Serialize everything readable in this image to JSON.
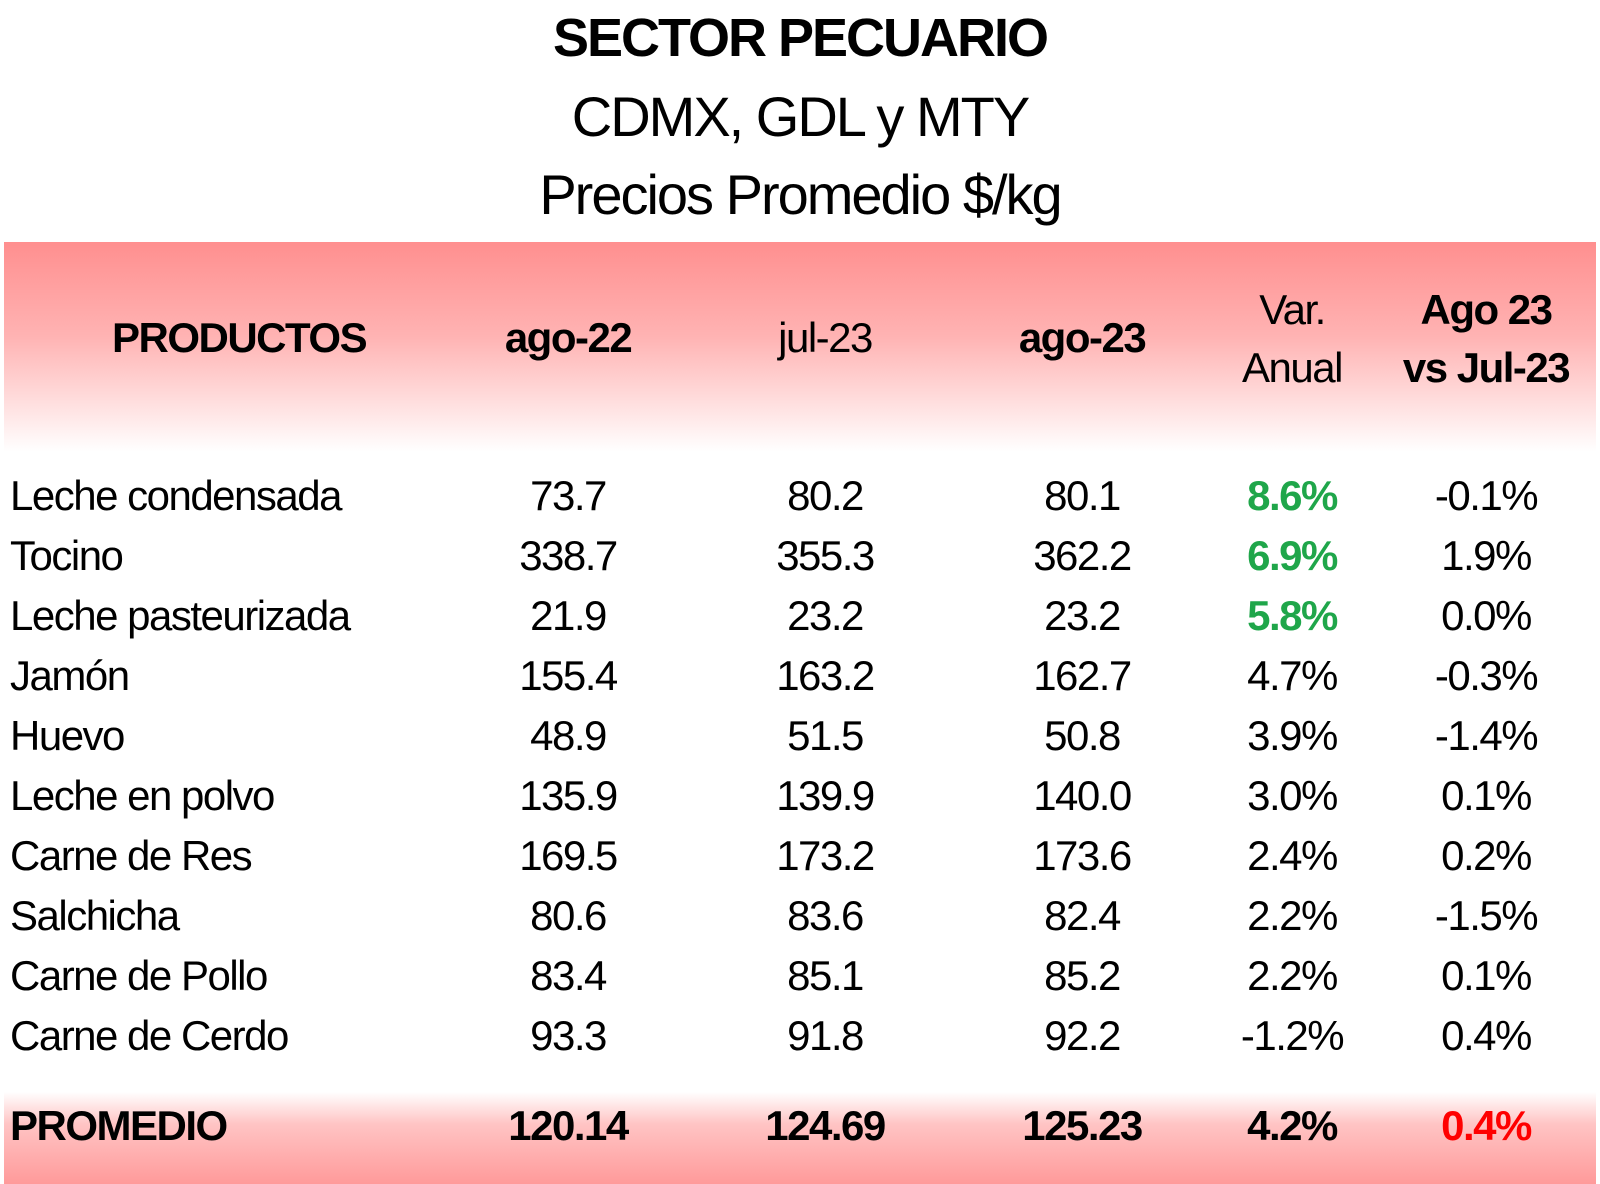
{
  "title": "SECTOR PECUARIO",
  "subtitle1": "CDMX, GDL y MTY",
  "subtitle2": "Precios Promedio $/kg",
  "header": {
    "productos": "PRODUCTOS",
    "ago22": "ago-22",
    "jul23": "jul-23",
    "ago23": "ago-23",
    "var_line1": "Var.",
    "var_line2": "Anual",
    "cmp_line1": "Ago 23",
    "cmp_line2": "vs Jul-23"
  },
  "rows": [
    {
      "producto": "Leche condensada",
      "ago22": "73.7",
      "jul23": "80.2",
      "ago23": "80.1",
      "var": "8.6%",
      "cmp": "-0.1%",
      "highlight": true
    },
    {
      "producto": "Tocino",
      "ago22": "338.7",
      "jul23": "355.3",
      "ago23": "362.2",
      "var": "6.9%",
      "cmp": "1.9%",
      "highlight": true
    },
    {
      "producto": "Leche pasteurizada",
      "ago22": "21.9",
      "jul23": "23.2",
      "ago23": "23.2",
      "var": "5.8%",
      "cmp": "0.0%",
      "highlight": true
    },
    {
      "producto": "Jamón",
      "ago22": "155.4",
      "jul23": "163.2",
      "ago23": "162.7",
      "var": "4.7%",
      "cmp": "-0.3%",
      "highlight": false
    },
    {
      "producto": "Huevo",
      "ago22": "48.9",
      "jul23": "51.5",
      "ago23": "50.8",
      "var": "3.9%",
      "cmp": "-1.4%",
      "highlight": false
    },
    {
      "producto": "Leche en polvo",
      "ago22": "135.9",
      "jul23": "139.9",
      "ago23": "140.0",
      "var": "3.0%",
      "cmp": "0.1%",
      "highlight": false
    },
    {
      "producto": "Carne de Res",
      "ago22": "169.5",
      "jul23": "173.2",
      "ago23": "173.6",
      "var": "2.4%",
      "cmp": "0.2%",
      "highlight": false
    },
    {
      "producto": "Salchicha",
      "ago22": "80.6",
      "jul23": "83.6",
      "ago23": "82.4",
      "var": "2.2%",
      "cmp": "-1.5%",
      "highlight": false
    },
    {
      "producto": "Carne de Pollo",
      "ago22": "83.4",
      "jul23": "85.1",
      "ago23": "85.2",
      "var": "2.2%",
      "cmp": "0.1%",
      "highlight": false
    },
    {
      "producto": "Carne de Cerdo",
      "ago22": "93.3",
      "jul23": "91.8",
      "ago23": "92.2",
      "var": "-1.2%",
      "cmp": "0.4%",
      "highlight": false
    }
  ],
  "promedio": {
    "label": "PROMEDIO",
    "ago22": "120.14",
    "jul23": "124.69",
    "ago23": "125.23",
    "var": "4.2%",
    "cmp": "0.4%"
  },
  "colors": {
    "positive": "#1fa64a",
    "negative_highlight": "#ff0000",
    "band": "#ff8f8f"
  }
}
